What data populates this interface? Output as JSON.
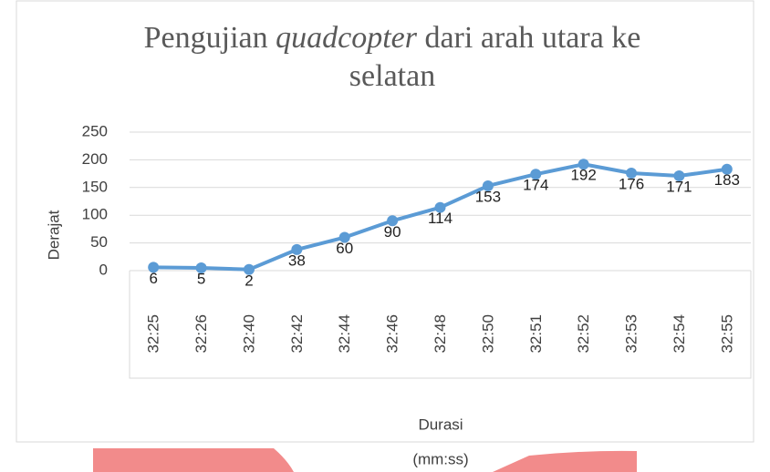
{
  "chart_data": {
    "type": "line",
    "title": [
      "Pengujian",
      "quadcopter",
      "dari arah utara ke",
      "selatan"
    ],
    "ylabel": "Derajat",
    "xlabel": [
      "Durasi",
      "(mm:ss)"
    ],
    "categories": [
      "32:25",
      "32:26",
      "32:40",
      "32:42",
      "32:44",
      "32:46",
      "32:48",
      "32:50",
      "32:51",
      "32:52",
      "32:53",
      "32:54",
      "32:55"
    ],
    "series": [
      {
        "name": "Derajat",
        "color": "#5b9bd5",
        "values": [
          6,
          5,
          2,
          38,
          60,
          90,
          114,
          153,
          174,
          192,
          176,
          171,
          183
        ]
      }
    ],
    "ylim": [
      0,
      250
    ],
    "yticks": [
      0,
      50,
      100,
      150,
      200,
      250
    ],
    "grid": true
  }
}
